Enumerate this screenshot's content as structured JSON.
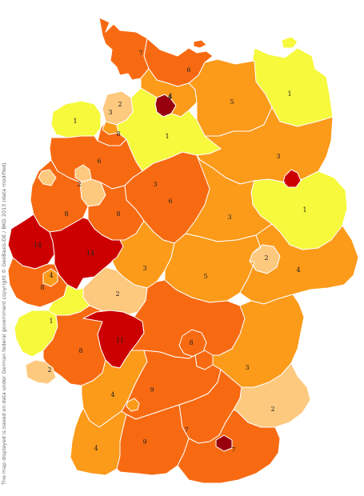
{
  "credit": "The map displayed is based on data under German federal government copyright © GeoBasis-DE / BKG 2013 (data modified)",
  "colors": {
    "yellow": "#f6f93c",
    "pale_orange": "#fdc97e",
    "orange": "#fc9a1a",
    "dark_orange": "#f86a12",
    "red": "#cc0000",
    "dark_red": "#99000d"
  },
  "regions": [
    {
      "name": "north-frisia-region",
      "value": "7",
      "color": "dark_orange"
    },
    {
      "name": "east-holstein-region",
      "value": "6",
      "color": "dark_orange"
    },
    {
      "name": "hamburg-region",
      "value": "4",
      "color": "dark_red"
    },
    {
      "name": "lueneburg-region",
      "value": "4",
      "color": "orange"
    },
    {
      "name": "west-pomerania-region",
      "value": "1",
      "color": "yellow"
    },
    {
      "name": "mecklenburg-region",
      "value": "5",
      "color": "orange"
    },
    {
      "name": "east-frisia-region",
      "value": "1",
      "color": "yellow"
    },
    {
      "name": "oldenburg-region",
      "value": "2",
      "color": "pale_orange"
    },
    {
      "name": "bremen-region",
      "value": "3",
      "color": "orange"
    },
    {
      "name": "emsland-region",
      "value": "8",
      "color": "dark_orange"
    },
    {
      "name": "lower-saxony-central-region",
      "value": "1",
      "color": "yellow"
    },
    {
      "name": "brandenburg-north-region",
      "value": "3",
      "color": "orange"
    },
    {
      "name": "berlin-region",
      "value": "",
      "color": "red"
    },
    {
      "name": "brandenburg-east-region",
      "value": "1",
      "color": "yellow"
    },
    {
      "name": "muenster-region",
      "value": "6",
      "color": "dark_orange"
    },
    {
      "name": "osnabrueck-city-region",
      "value": "2",
      "color": "pale_orange"
    },
    {
      "name": "hanover-south-region",
      "value": "3",
      "color": "pale_orange"
    },
    {
      "name": "braunschweig-region",
      "value": "6",
      "color": "dark_orange"
    },
    {
      "name": "saxony-anhalt-region",
      "value": "3",
      "color": "orange"
    },
    {
      "name": "lower-rhine-region",
      "value": "8",
      "color": "dark_orange"
    },
    {
      "name": "westphalia-east-region",
      "value": "8",
      "color": "dark_orange"
    },
    {
      "name": "duesseldorf-region",
      "value": "14",
      "color": "red"
    },
    {
      "name": "ruhr-region",
      "value": "14",
      "color": "red"
    },
    {
      "name": "hesse-north-region",
      "value": "3",
      "color": "orange"
    },
    {
      "name": "thuringia-region",
      "value": "5",
      "color": "orange"
    },
    {
      "name": "leipzig-region",
      "value": "2",
      "color": "pale_orange"
    },
    {
      "name": "saxony-region",
      "value": "4",
      "color": "orange"
    },
    {
      "name": "cologne-region",
      "value": "8",
      "color": "dark_orange"
    },
    {
      "name": "bonn-city-region",
      "value": "4",
      "color": "orange"
    },
    {
      "name": "hesse-central-region",
      "value": "2",
      "color": "pale_orange"
    },
    {
      "name": "rhineland-north-region",
      "value": "",
      "color": "yellow"
    },
    {
      "name": "trier-region",
      "value": "1",
      "color": "yellow"
    },
    {
      "name": "rhineland-palatinate-region",
      "value": "8",
      "color": "dark_orange"
    },
    {
      "name": "frankfurt-region",
      "value": "11",
      "color": "red"
    },
    {
      "name": "saarland-region",
      "value": "2",
      "color": "pale_orange"
    },
    {
      "name": "lower-franconia-region",
      "value": "",
      "color": "dark_orange"
    },
    {
      "name": "upper-franconia-region",
      "value": "8",
      "color": "dark_orange"
    },
    {
      "name": "nuremberg-region",
      "value": "",
      "color": "dark_orange"
    },
    {
      "name": "upper-palatinate-region",
      "value": "3",
      "color": "orange"
    },
    {
      "name": "karlsruhe-region",
      "value": "4",
      "color": "orange"
    },
    {
      "name": "stuttgart-region",
      "value": "9",
      "color": "dark_orange"
    },
    {
      "name": "ingolstadt-region",
      "value": "7",
      "color": "dark_orange"
    },
    {
      "name": "lower-bavaria-region",
      "value": "2",
      "color": "pale_orange"
    },
    {
      "name": "freiburg-region",
      "value": "4",
      "color": "orange"
    },
    {
      "name": "tuebingen-region",
      "value": "9",
      "color": "dark_orange"
    },
    {
      "name": "upper-bavaria-region",
      "value": "7",
      "color": "dark_orange"
    },
    {
      "name": "munich-city-region",
      "value": "",
      "color": "dark_red"
    },
    {
      "name": "stuttgart-city-region",
      "value": "",
      "color": "orange"
    },
    {
      "name": "lippe-region",
      "value": "",
      "color": "pale_orange"
    },
    {
      "name": "fehmarn-island-region",
      "value": "",
      "color": "dark_orange"
    },
    {
      "name": "ruegen-island-region",
      "value": "",
      "color": "yellow"
    }
  ]
}
